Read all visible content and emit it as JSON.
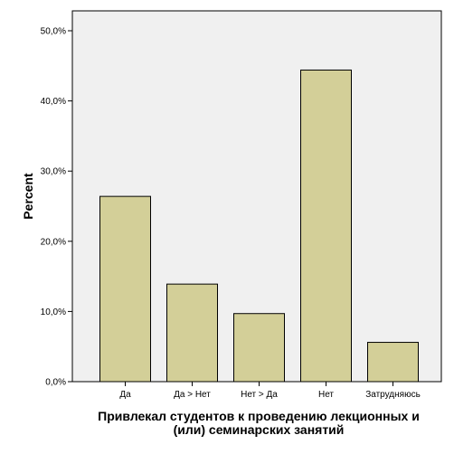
{
  "chart_data": {
    "type": "bar",
    "categories": [
      "Да",
      "Да > Нет",
      "Нет > Да",
      "Нет",
      "Затрудняюсь"
    ],
    "values": [
      26.4,
      13.9,
      9.7,
      44.4,
      5.6
    ],
    "ylabel": "Percent",
    "xlabel_lines": [
      "Привлекал студентов к проведению лекционных и",
      "(или) семинарских занятий"
    ],
    "ylim": [
      0,
      50
    ],
    "yticks": [
      "0,0%",
      "10,0%",
      "20,0%",
      "30,0%",
      "40,0%",
      "50,0%"
    ],
    "grid": false,
    "colors": {
      "bar_fill": "#d3cf98",
      "bar_stroke": "#000000",
      "plot_background": "#f0f0f0"
    }
  }
}
